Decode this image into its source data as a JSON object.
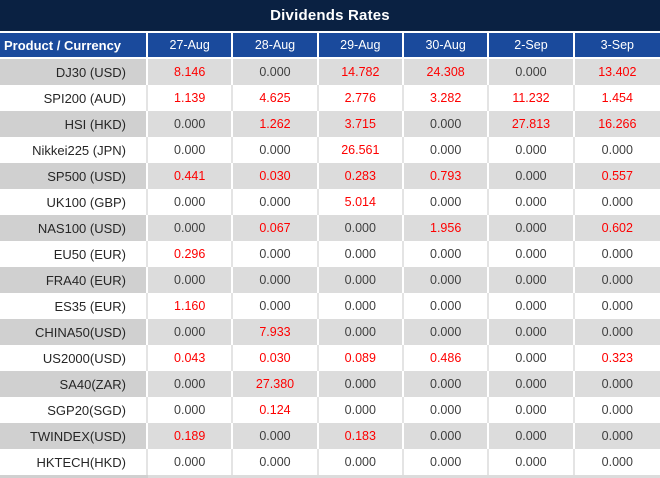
{
  "chart_data": {
    "type": "table",
    "title": "Dividends Rates",
    "columns": [
      "Product / Currency",
      "27-Aug",
      "28-Aug",
      "29-Aug",
      "30-Aug",
      "2-Sep",
      "3-Sep"
    ],
    "rows": [
      {
        "product": "DJ30 (USD)",
        "values": [
          "8.146",
          "0.000",
          "14.782",
          "24.308",
          "0.000",
          "13.402"
        ]
      },
      {
        "product": "SPI200 (AUD)",
        "values": [
          "1.139",
          "4.625",
          "2.776",
          "3.282",
          "11.232",
          "1.454"
        ]
      },
      {
        "product": "HSI (HKD)",
        "values": [
          "0.000",
          "1.262",
          "3.715",
          "0.000",
          "27.813",
          "16.266"
        ]
      },
      {
        "product": "Nikkei225 (JPN)",
        "values": [
          "0.000",
          "0.000",
          "26.561",
          "0.000",
          "0.000",
          "0.000"
        ]
      },
      {
        "product": "SP500 (USD)",
        "values": [
          "0.441",
          "0.030",
          "0.283",
          "0.793",
          "0.000",
          "0.557"
        ]
      },
      {
        "product": "UK100 (GBP)",
        "values": [
          "0.000",
          "0.000",
          "5.014",
          "0.000",
          "0.000",
          "0.000"
        ]
      },
      {
        "product": "NAS100 (USD)",
        "values": [
          "0.000",
          "0.067",
          "0.000",
          "1.956",
          "0.000",
          "0.602"
        ]
      },
      {
        "product": "EU50 (EUR)",
        "values": [
          "0.296",
          "0.000",
          "0.000",
          "0.000",
          "0.000",
          "0.000"
        ]
      },
      {
        "product": "FRA40 (EUR)",
        "values": [
          "0.000",
          "0.000",
          "0.000",
          "0.000",
          "0.000",
          "0.000"
        ]
      },
      {
        "product": "ES35 (EUR)",
        "values": [
          "1.160",
          "0.000",
          "0.000",
          "0.000",
          "0.000",
          "0.000"
        ]
      },
      {
        "product": "CHINA50(USD)",
        "values": [
          "0.000",
          "7.933",
          "0.000",
          "0.000",
          "0.000",
          "0.000"
        ]
      },
      {
        "product": "US2000(USD)",
        "values": [
          "0.043",
          "0.030",
          "0.089",
          "0.486",
          "0.000",
          "0.323"
        ]
      },
      {
        "product": "SA40(ZAR)",
        "values": [
          "0.000",
          "27.380",
          "0.000",
          "0.000",
          "0.000",
          "0.000"
        ]
      },
      {
        "product": "SGP20(SGD)",
        "values": [
          "0.000",
          "0.124",
          "0.000",
          "0.000",
          "0.000",
          "0.000"
        ]
      },
      {
        "product": "TWINDEX(USD)",
        "values": [
          "0.189",
          "0.000",
          "0.183",
          "0.000",
          "0.000",
          "0.000"
        ]
      },
      {
        "product": "HKTECH(HKD)",
        "values": [
          "0.000",
          "0.000",
          "0.000",
          "0.000",
          "0.000",
          "0.000"
        ]
      }
    ],
    "value_color_rule": "non-zero values rendered red, zero values dark gray",
    "layout_hints": {
      "striped_rows": "odd rows gray starting with first data row",
      "values_aligned": "center",
      "products_aligned": "right"
    }
  },
  "colors": {
    "title_bg": "#0a2142",
    "header_bg": "#1a4a9c",
    "header_text": "#ffffff",
    "stripe_product": "#d0d0d0",
    "stripe_data": "#dcdcdc",
    "row_white": "#ffffff",
    "white_row_divider": "#e4e4e4",
    "positive_value": "#fe0000",
    "zero_value": "#3f3f3f"
  }
}
